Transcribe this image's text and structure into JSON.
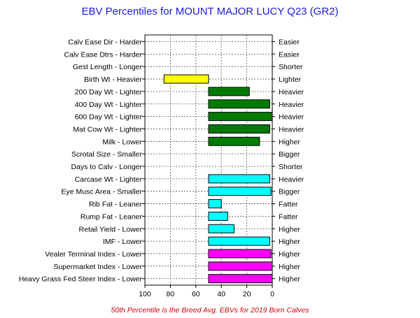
{
  "chart_data": {
    "type": "bar",
    "title": "EBV Percentiles for MOUNT MAJOR LUCY Q23 (GR2)",
    "footnote": "50th Percentile is the Breed Avg. EBVs for 2019 Born Calves",
    "xlim": [
      100,
      0
    ],
    "xticks": [
      "100",
      "80",
      "60",
      "40",
      "20",
      "0"
    ],
    "baseline": 50,
    "grid": true,
    "rows": [
      {
        "left": "Calv Ease Dir - Harder",
        "right": "Easier",
        "value": null,
        "color": null
      },
      {
        "left": "Calv Ease Dtrs - Harder",
        "right": "Easier",
        "value": null,
        "color": null
      },
      {
        "left": "Gest Length - Longer",
        "right": "Shorter",
        "value": null,
        "color": null
      },
      {
        "left": "Birth Wt - Heavier",
        "right": "Lighter",
        "value": 85,
        "color": "#ffff00"
      },
      {
        "left": "200 Day Wt - Lighter",
        "right": "Heavier",
        "value": 18,
        "color": "#007a00"
      },
      {
        "left": "400 Day Wt - Lighter",
        "right": "Heavier",
        "value": 2,
        "color": "#007a00"
      },
      {
        "left": "600 Day Wt - Lighter",
        "right": "Heavier",
        "value": 0,
        "color": "#007a00"
      },
      {
        "left": "Mat Cow Wt - Lighter",
        "right": "Heavier",
        "value": 2,
        "color": "#007a00"
      },
      {
        "left": "Milk - Lower",
        "right": "Higher",
        "value": 10,
        "color": "#007a00"
      },
      {
        "left": "Scrotal Size - Smaller",
        "right": "Bigger",
        "value": null,
        "color": null
      },
      {
        "left": "Days to Calv - Longer",
        "right": "Shorter",
        "value": null,
        "color": null
      },
      {
        "left": "Carcase Wt - Lighter",
        "right": "Heavier",
        "value": 2,
        "color": "#00ffff"
      },
      {
        "left": "Eye Musc Area - Smaller",
        "right": "Bigger",
        "value": 1,
        "color": "#00ffff"
      },
      {
        "left": "Rib Fat - Leaner",
        "right": "Fatter",
        "value": 40,
        "color": "#00ffff"
      },
      {
        "left": "Rump Fat - Leaner",
        "right": "Fatter",
        "value": 35,
        "color": "#00ffff"
      },
      {
        "left": "Retail Yield - Lower",
        "right": "Higher",
        "value": 30,
        "color": "#00ffff"
      },
      {
        "left": "IMF - Lower",
        "right": "Higher",
        "value": 2,
        "color": "#00ffff"
      },
      {
        "left": "Vealer Terminal Index - Lower",
        "right": "Higher",
        "value": 1,
        "color": "#ff00ff"
      },
      {
        "left": "Supermarket Index - Lower",
        "right": "Higher",
        "value": 0,
        "color": "#ff00ff"
      },
      {
        "left": "Heavy Grass Fed Steer Index - Lower",
        "right": "Higher",
        "value": 0,
        "color": "#ff00ff"
      }
    ]
  }
}
